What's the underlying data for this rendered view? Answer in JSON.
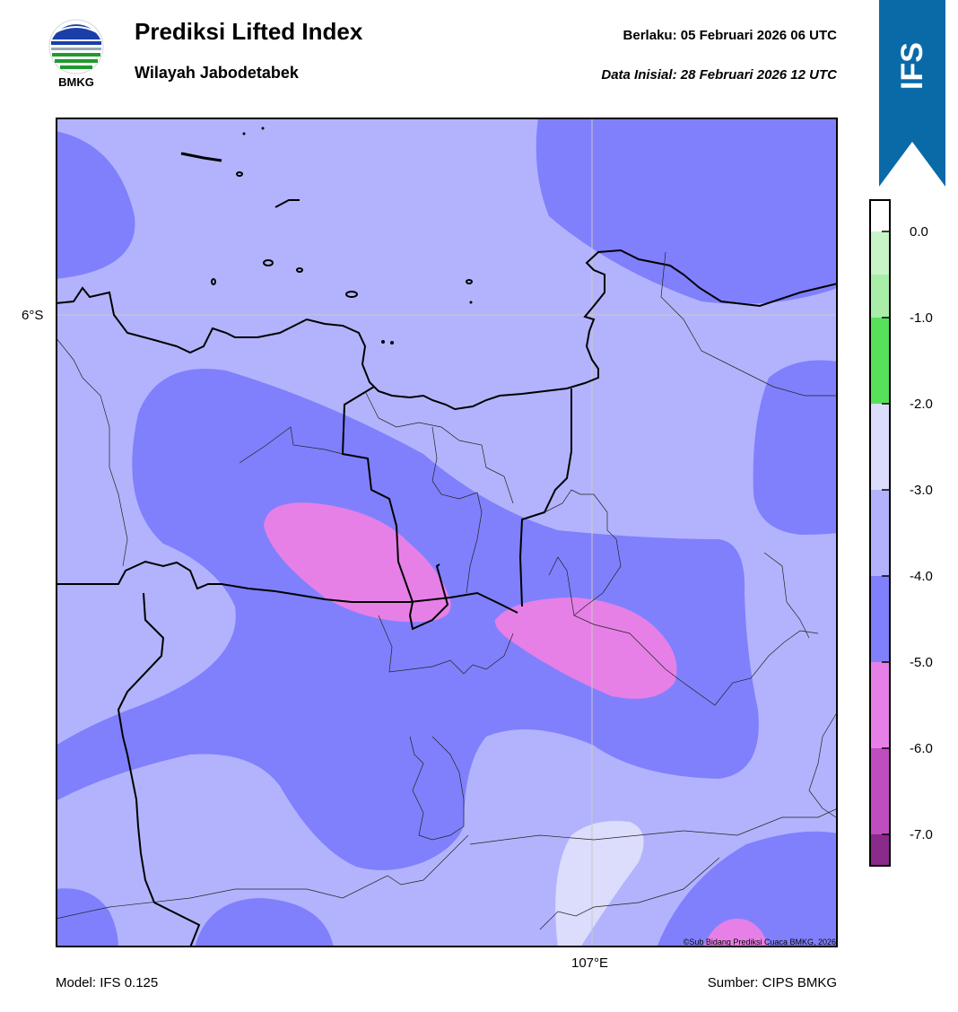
{
  "header": {
    "title": "Prediksi Lifted Index",
    "subtitle": "Wilayah Jabodetabek",
    "valid_label": "Berlaku:  05 Februari 2026 06 UTC",
    "init_label": "Data Inisial:  28 Februari 2026 12 UTC"
  },
  "logo": {
    "text": "BMKG",
    "icon": "bmkg-logo-icon"
  },
  "banner": {
    "text": "IFS",
    "color": "#0a6aa8"
  },
  "map": {
    "lat_label": "6°S",
    "lon_label": "107°E",
    "copyright": "©Sub Bidang Prediksi Cuaca BMKG, 2026"
  },
  "footer": {
    "model": "Model: IFS 0.125",
    "source": "Sumber: CIPS BMKG"
  },
  "colorbar": {
    "ticks": [
      "0.0",
      "-1.0",
      "-2.0",
      "-3.0",
      "-4.0",
      "-5.0",
      "-6.0",
      "-7.0"
    ],
    "bands": [
      {
        "range": "> 0.0",
        "color": "#ffffff"
      },
      {
        "range": "0.0 to -0.5",
        "color": "#c8f5c8"
      },
      {
        "range": "-0.5 to -1.0",
        "color": "#a8eea8"
      },
      {
        "range": "-1.0 to -2.0",
        "color": "#57e05a"
      },
      {
        "range": "-2.0 to -3.0",
        "color": "#dcdcfc"
      },
      {
        "range": "-3.0 to -4.0",
        "color": "#b3b3fd"
      },
      {
        "range": "-4.0 to -5.0",
        "color": "#8080fd"
      },
      {
        "range": "-5.0 to -6.0",
        "color": "#e680e6"
      },
      {
        "range": "-6.0 to -7.0",
        "color": "#c04dc0"
      },
      {
        "range": "< -7.0",
        "color": "#8a2a8a"
      }
    ]
  }
}
